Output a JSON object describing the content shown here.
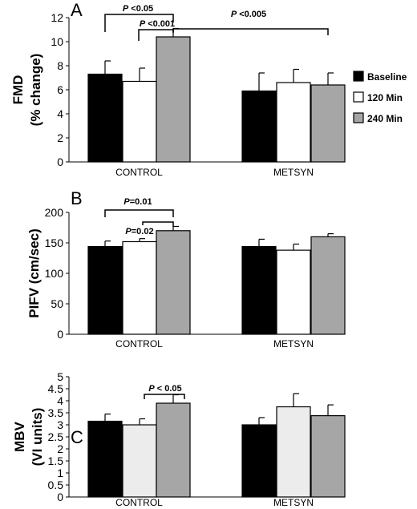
{
  "colors": {
    "baseline": "#000000",
    "min120": "#ffffff",
    "min240": "#a6a6a6",
    "min120_panelC": "#ececec"
  },
  "legend": [
    {
      "label": "Baseline",
      "color": "#000000"
    },
    {
      "label": "120 Min",
      "color": "#ffffff"
    },
    {
      "label": "240 Min",
      "color": "#a6a6a6"
    }
  ],
  "chart_data": [
    {
      "panel": "A",
      "type": "bar",
      "ylabel_line1": "FMD",
      "ylabel_line2": "(% change)",
      "ylim": [
        0,
        12
      ],
      "yticks": [
        "0",
        "2",
        "4",
        "6",
        "8",
        "10",
        "12"
      ],
      "categories": [
        "CONTROL",
        "METSYN"
      ],
      "series": [
        {
          "name": "Baseline",
          "values": [
            7.3,
            5.9
          ],
          "errors": [
            1.1,
            1.5
          ]
        },
        {
          "name": "120 Min",
          "values": [
            6.7,
            6.6
          ],
          "errors": [
            1.1,
            1.1
          ]
        },
        {
          "name": "240 Min",
          "values": [
            10.4,
            6.4
          ],
          "errors": [
            0.7,
            1.0
          ]
        }
      ],
      "annotations": [
        {
          "prefix": "P",
          "text": " <0.05"
        },
        {
          "prefix": "P",
          "text": " <0.001"
        },
        {
          "prefix": "P",
          "text": " <0.005"
        }
      ]
    },
    {
      "panel": "B",
      "type": "bar",
      "ylabel_line1": "PIFV (cm/sec)",
      "ylabel_line2": "",
      "ylim": [
        0,
        200
      ],
      "yticks": [
        "0",
        "50",
        "100",
        "150",
        "200"
      ],
      "categories": [
        "CONTROL",
        "METSYN"
      ],
      "series": [
        {
          "name": "Baseline",
          "values": [
            144,
            144
          ],
          "errors": [
            9,
            12
          ]
        },
        {
          "name": "120 Min",
          "values": [
            152,
            138
          ],
          "errors": [
            5,
            10
          ]
        },
        {
          "name": "240 Min",
          "values": [
            170,
            160
          ],
          "errors": [
            7,
            5
          ]
        }
      ],
      "annotations": [
        {
          "prefix": "P",
          "text": "=0.01"
        },
        {
          "prefix": "P",
          "text": "=0.02"
        }
      ]
    },
    {
      "panel": "C",
      "type": "bar",
      "ylabel_line1": "MBV",
      "ylabel_line2": "(VI units)",
      "ylim": [
        0,
        5
      ],
      "yticks": [
        "0",
        "0.5",
        "1",
        "1.5",
        "2",
        "2.5",
        "3",
        "3.5",
        "4",
        "4.5",
        "5"
      ],
      "categories": [
        "CONTROL",
        "METSYN"
      ],
      "series": [
        {
          "name": "Baseline",
          "values": [
            3.15,
            3.0
          ],
          "errors": [
            0.3,
            0.3
          ]
        },
        {
          "name": "120 Min",
          "values": [
            3.0,
            3.75
          ],
          "errors": [
            0.25,
            0.55
          ]
        },
        {
          "name": "240 Min",
          "values": [
            3.9,
            3.38
          ],
          "errors": [
            0.35,
            0.45
          ]
        }
      ],
      "annotations": [
        {
          "prefix": "P",
          "text": " < 0.05"
        }
      ]
    }
  ]
}
